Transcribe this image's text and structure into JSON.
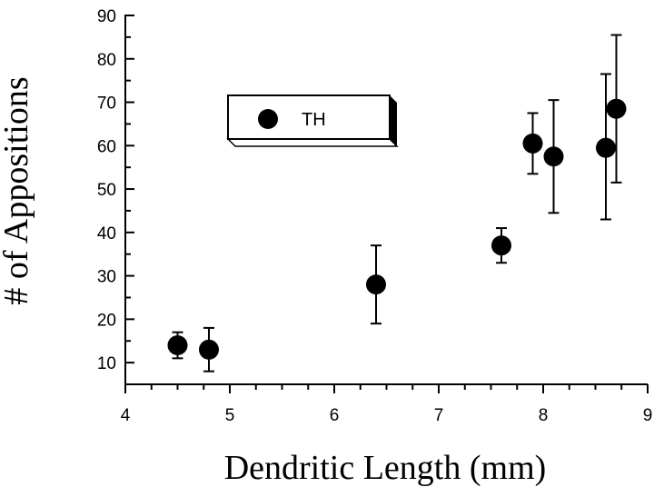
{
  "chart_data": {
    "type": "scatter",
    "title": "",
    "xlabel": "Dendritic Length (mm)",
    "ylabel": "# of Appositions",
    "xlim": [
      4,
      9
    ],
    "ylim": [
      5,
      90
    ],
    "xticks": [
      4,
      5,
      6,
      7,
      8,
      9
    ],
    "yticks": [
      10,
      20,
      30,
      40,
      50,
      60,
      70,
      80,
      90
    ],
    "grid": false,
    "legend": {
      "placement": "upper-left",
      "entries": [
        "TH"
      ]
    },
    "series": [
      {
        "name": "TH",
        "color": "#000000",
        "marker": "filled-circle",
        "points": [
          {
            "x": 4.5,
            "y": 14,
            "err_low": 11,
            "err_high": 17
          },
          {
            "x": 4.8,
            "y": 13,
            "err_low": 8,
            "err_high": 18
          },
          {
            "x": 6.4,
            "y": 28,
            "err_low": 19,
            "err_high": 37
          },
          {
            "x": 7.6,
            "y": 37,
            "err_low": 33,
            "err_high": 41
          },
          {
            "x": 7.9,
            "y": 60.5,
            "err_low": 53.5,
            "err_high": 67.5
          },
          {
            "x": 8.1,
            "y": 57.5,
            "err_low": 44.5,
            "err_high": 70.5
          },
          {
            "x": 8.6,
            "y": 59.5,
            "err_low": 43,
            "err_high": 76.5
          },
          {
            "x": 8.7,
            "y": 68.5,
            "err_low": 51.5,
            "err_high": 85.5
          }
        ]
      }
    ]
  }
}
